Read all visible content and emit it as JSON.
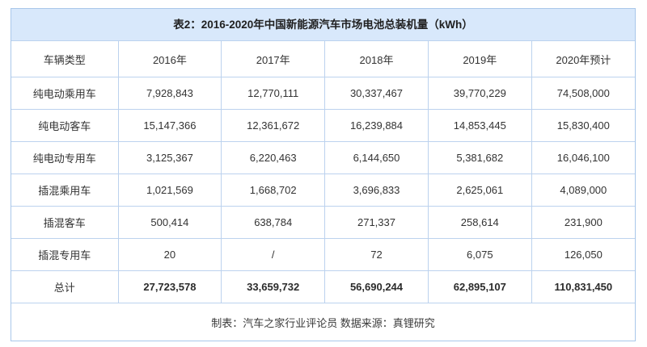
{
  "colors": {
    "title_band_bg": "#d8e8fb",
    "grid_border": "#bcd2ee",
    "outer_border": "#a9c7ea",
    "title_text": "#1f1f1f",
    "body_text": "#333333"
  },
  "chart_data": {
    "type": "table",
    "title": "表2：2016-2020年中国新能源汽车市场电池总装机量（kWh）",
    "columns": [
      "车辆类型",
      "2016年",
      "2017年",
      "2018年",
      "2019年",
      "2020年预计"
    ],
    "rows": [
      {
        "label": "纯电动乘用车",
        "values": [
          "7,928,843",
          "12,770,111",
          "30,337,467",
          "39,770,229",
          "74,508,000"
        ]
      },
      {
        "label": "纯电动客车",
        "values": [
          "15,147,366",
          "12,361,672",
          "16,239,884",
          "14,853,445",
          "15,830,400"
        ]
      },
      {
        "label": "纯电动专用车",
        "values": [
          "3,125,367",
          "6,220,463",
          "6,144,650",
          "5,381,682",
          "16,046,100"
        ]
      },
      {
        "label": "插混乘用车",
        "values": [
          "1,021,569",
          "1,668,702",
          "3,696,833",
          "2,625,061",
          "4,089,000"
        ]
      },
      {
        "label": "插混客车",
        "values": [
          "500,414",
          "638,784",
          "271,337",
          "258,614",
          "231,900"
        ]
      },
      {
        "label": "插混专用车",
        "values": [
          "20",
          "/",
          "72",
          "6,075",
          "126,050"
        ]
      },
      {
        "label": "总计",
        "values": [
          "27,723,578",
          "33,659,732",
          "56,690,244",
          "62,895,107",
          "110,831,450"
        ]
      }
    ],
    "footer": "制表：汽车之家行业评论员  数据来源：真锂研究"
  }
}
